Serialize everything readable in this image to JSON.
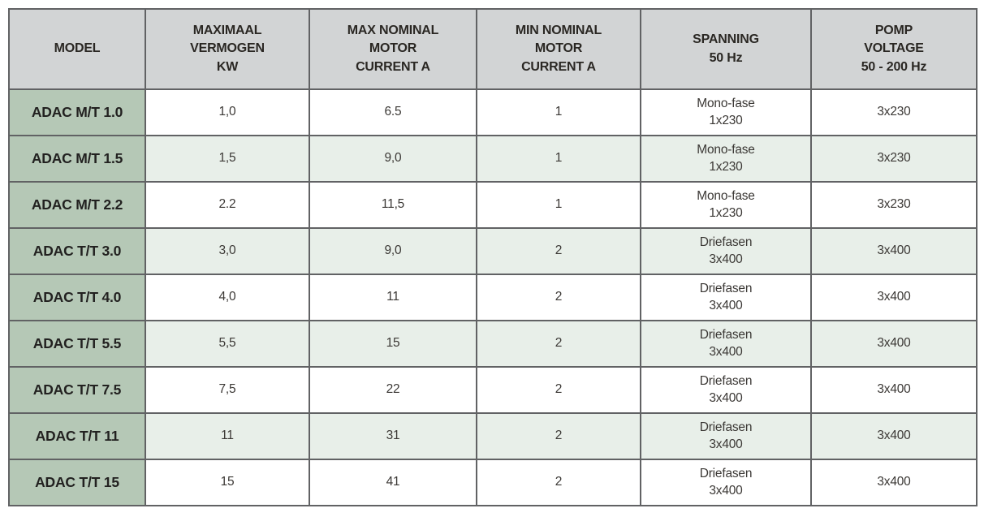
{
  "chart_data": {
    "type": "table",
    "columns": [
      "MODEL",
      "MAXIMAAL\nVERMOGEN\nKW",
      "MAX NOMINAL\nMOTOR\nCURRENT A",
      "MIN NOMINAL\nMOTOR\nCURRENT A",
      "SPANNING\n50 Hz",
      "POMP\nVOLTAGE\n50 - 200 Hz"
    ],
    "rows": [
      [
        "ADAC M/T 1.0",
        "1,0",
        "6.5",
        "1",
        "Mono-fase\n1x230",
        "3x230"
      ],
      [
        "ADAC M/T 1.5",
        "1,5",
        "9,0",
        "1",
        "Mono-fase\n1x230",
        "3x230"
      ],
      [
        "ADAC M/T 2.2",
        "2.2",
        "11,5",
        "1",
        "Mono-fase\n1x230",
        "3x230"
      ],
      [
        "ADAC T/T 3.0",
        "3,0",
        "9,0",
        "2",
        "Driefasen\n3x400",
        "3x400"
      ],
      [
        "ADAC T/T 4.0",
        "4,0",
        "11",
        "2",
        "Driefasen\n3x400",
        "3x400"
      ],
      [
        "ADAC T/T 5.5",
        "5,5",
        "15",
        "2",
        "Driefasen\n3x400",
        "3x400"
      ],
      [
        "ADAC T/T 7.5",
        "7,5",
        "22",
        "2",
        "Driefasen\n3x400",
        "3x400"
      ],
      [
        "ADAC T/T 11",
        "11",
        "31",
        "2",
        "Driefasen\n3x400",
        "3x400"
      ],
      [
        "ADAC T/T 15",
        "15",
        "41",
        "2",
        "Driefasen\n3x400",
        "3x400"
      ]
    ],
    "layout": {
      "grid": "full-borders",
      "alternating_rows": true,
      "first_column_is_header": true
    }
  },
  "colors": {
    "header_background": "#d2d4d5",
    "model_column_background": "#b5c8b6",
    "alternate_row_background": "#e8efe9",
    "row_background": "#ffffff",
    "grid_border": "#616264",
    "outer_border": "#454648",
    "text": "#2a2723"
  }
}
